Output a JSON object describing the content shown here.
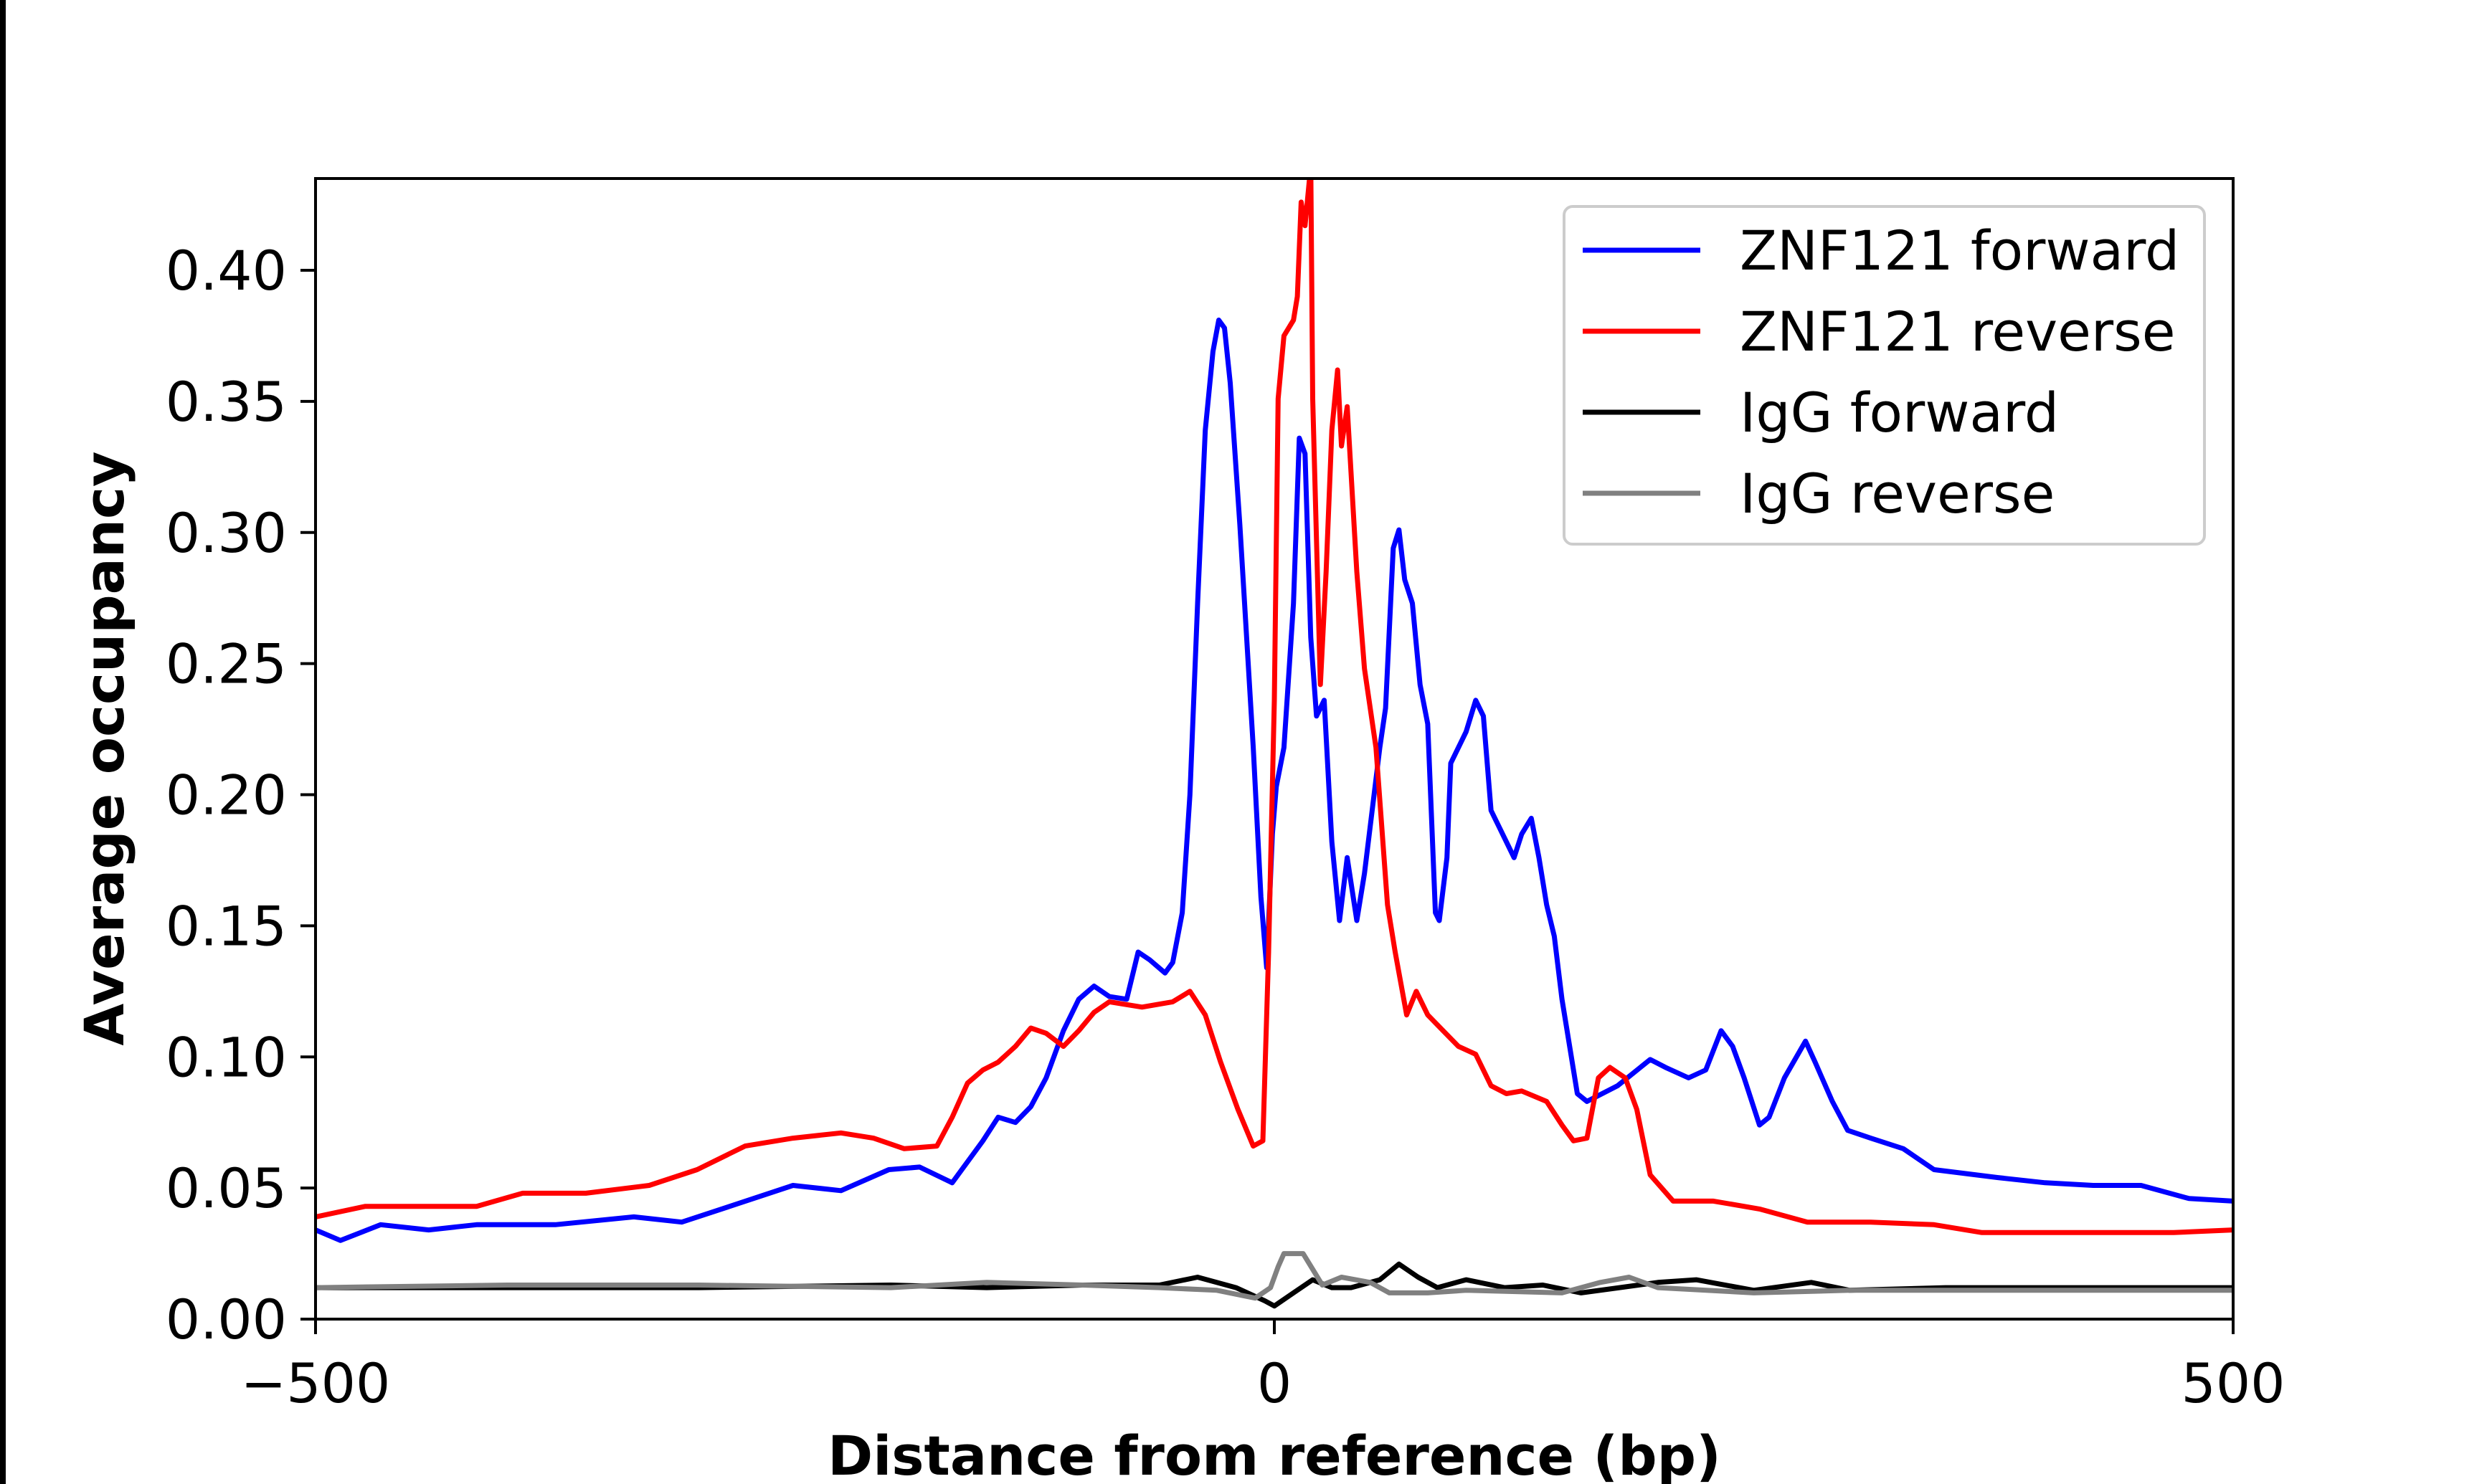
{
  "chart_data": {
    "type": "line",
    "title": "",
    "xlabel": "Distance from reference (bp)",
    "ylabel": "Average occupancy",
    "xlim": [
      -500,
      500
    ],
    "ylim": [
      0,
      0.435
    ],
    "xticks": [
      -500,
      0,
      500
    ],
    "xtick_labels": [
      "−500",
      "0",
      "500"
    ],
    "yticks": [
      0,
      0.05,
      0.1,
      0.15,
      0.2,
      0.25,
      0.3,
      0.35,
      0.4
    ],
    "ytick_labels": [
      "0.00",
      "0.05",
      "0.10",
      "0.15",
      "0.20",
      "0.25",
      "0.30",
      "0.35",
      "0.40"
    ],
    "grid": false,
    "legend_position": "top-right",
    "series": [
      {
        "name": "ZNF121 forward",
        "color": "#0000ff",
        "x": [
          -500,
          -487,
          -466,
          -441,
          -416,
          -375,
          -334,
          -309,
          -284,
          -251,
          -226,
          -201,
          -185,
          -168,
          -152,
          -144,
          -135,
          -127,
          -119,
          -110,
          -102,
          -94,
          -86,
          -77,
          -71,
          -65,
          -57,
          -53,
          -48,
          -44,
          -40,
          -36,
          -32,
          -29,
          -26,
          -23,
          -18,
          -11,
          -7,
          -4,
          -1,
          1,
          5,
          10,
          13,
          16,
          19,
          22,
          26,
          30,
          34,
          38,
          43,
          47,
          51,
          55,
          58,
          62,
          65,
          68,
          72,
          76,
          80,
          84,
          86,
          90,
          92,
          96,
          100,
          105,
          109,
          113,
          117,
          121,
          125,
          129,
          134,
          138,
          142,
          146,
          150,
          154,
          158,
          163,
          179,
          196,
          204,
          216,
          225,
          233,
          239,
          245,
          253,
          258,
          266,
          277,
          282,
          291,
          299,
          311,
          328,
          344,
          377,
          402,
          427,
          452,
          477,
          500
        ],
        "y": [
          0.034,
          0.03,
          0.036,
          0.034,
          0.036,
          0.036,
          0.039,
          0.037,
          0.043,
          0.051,
          0.049,
          0.057,
          0.058,
          0.052,
          0.068,
          0.077,
          0.075,
          0.081,
          0.092,
          0.11,
          0.122,
          0.127,
          0.123,
          0.122,
          0.14,
          0.137,
          0.132,
          0.136,
          0.155,
          0.2,
          0.273,
          0.339,
          0.369,
          0.381,
          0.378,
          0.357,
          0.303,
          0.218,
          0.161,
          0.134,
          0.185,
          0.203,
          0.218,
          0.273,
          0.336,
          0.33,
          0.26,
          0.23,
          0.236,
          0.182,
          0.152,
          0.176,
          0.152,
          0.17,
          0.194,
          0.218,
          0.233,
          0.294,
          0.301,
          0.282,
          0.273,
          0.242,
          0.227,
          0.155,
          0.152,
          0.176,
          0.212,
          0.218,
          0.224,
          0.236,
          0.23,
          0.194,
          0.188,
          0.182,
          0.176,
          0.185,
          0.191,
          0.176,
          0.158,
          0.146,
          0.122,
          0.104,
          0.086,
          0.083,
          0.089,
          0.099,
          0.096,
          0.092,
          0.095,
          0.11,
          0.104,
          0.092,
          0.074,
          0.077,
          0.092,
          0.106,
          0.098,
          0.083,
          0.072,
          0.069,
          0.065,
          0.057,
          0.054,
          0.052,
          0.051,
          0.051,
          0.046,
          0.045
        ]
      },
      {
        "name": "ZNF121 reverse",
        "color": "#ff0000",
        "x": [
          -500,
          -474,
          -450,
          -416,
          -392,
          -359,
          -326,
          -301,
          -276,
          -251,
          -226,
          -209,
          -193,
          -176,
          -168,
          -160,
          -152,
          -144,
          -135,
          -127,
          -119,
          -110,
          -102,
          -94,
          -86,
          -69,
          -53,
          -44,
          -36,
          -28,
          -19,
          -11,
          -6,
          -3,
          0,
          2,
          5,
          10,
          12,
          14,
          16,
          19,
          20,
          24,
          27,
          30,
          33,
          35,
          38,
          43,
          47,
          53,
          59,
          63,
          69,
          74,
          80,
          88,
          96,
          105,
          113,
          121,
          129,
          142,
          150,
          156,
          163,
          169,
          175,
          183,
          189,
          196,
          208,
          229,
          253,
          278,
          311,
          344,
          369,
          402,
          435,
          469,
          500
        ],
        "y": [
          0.039,
          0.043,
          0.043,
          0.043,
          0.048,
          0.048,
          0.051,
          0.057,
          0.066,
          0.069,
          0.071,
          0.069,
          0.065,
          0.066,
          0.077,
          0.09,
          0.095,
          0.098,
          0.104,
          0.111,
          0.109,
          0.104,
          0.11,
          0.117,
          0.121,
          0.119,
          0.121,
          0.125,
          0.116,
          0.098,
          0.08,
          0.066,
          0.068,
          0.14,
          0.236,
          0.351,
          0.375,
          0.381,
          0.39,
          0.426,
          0.417,
          0.44,
          0.351,
          0.242,
          0.285,
          0.339,
          0.362,
          0.333,
          0.348,
          0.285,
          0.248,
          0.218,
          0.158,
          0.14,
          0.116,
          0.125,
          0.116,
          0.11,
          0.104,
          0.101,
          0.089,
          0.086,
          0.087,
          0.083,
          0.074,
          0.068,
          0.069,
          0.092,
          0.096,
          0.092,
          0.08,
          0.055,
          0.045,
          0.045,
          0.042,
          0.037,
          0.037,
          0.036,
          0.033,
          0.033,
          0.033,
          0.033,
          0.034
        ]
      },
      {
        "name": "IgG forward",
        "color": "#000000",
        "x": [
          -500,
          -400,
          -300,
          -200,
          -150,
          -100,
          -60,
          -40,
          -20,
          -5,
          0,
          10,
          20,
          30,
          40,
          55,
          65,
          75,
          85,
          100,
          120,
          140,
          160,
          180,
          200,
          220,
          250,
          280,
          300,
          350,
          400,
          450,
          500
        ],
        "y": [
          0.012,
          0.012,
          0.012,
          0.013,
          0.012,
          0.013,
          0.013,
          0.016,
          0.012,
          0.007,
          0.005,
          0.01,
          0.015,
          0.012,
          0.012,
          0.015,
          0.021,
          0.016,
          0.012,
          0.015,
          0.012,
          0.013,
          0.01,
          0.012,
          0.014,
          0.015,
          0.011,
          0.014,
          0.011,
          0.012,
          0.012,
          0.012,
          0.012
        ]
      },
      {
        "name": "IgG reverse",
        "color": "#808080",
        "x": [
          -500,
          -400,
          -300,
          -200,
          -150,
          -100,
          -60,
          -30,
          -10,
          -2,
          2,
          5,
          15,
          20,
          25,
          35,
          50,
          60,
          80,
          100,
          150,
          170,
          185,
          200,
          250,
          300,
          400,
          500
        ],
        "y": [
          0.012,
          0.013,
          0.013,
          0.012,
          0.014,
          0.013,
          0.012,
          0.011,
          0.008,
          0.012,
          0.02,
          0.025,
          0.025,
          0.019,
          0.013,
          0.016,
          0.014,
          0.01,
          0.01,
          0.011,
          0.01,
          0.014,
          0.016,
          0.012,
          0.01,
          0.011,
          0.011,
          0.011
        ]
      }
    ]
  }
}
